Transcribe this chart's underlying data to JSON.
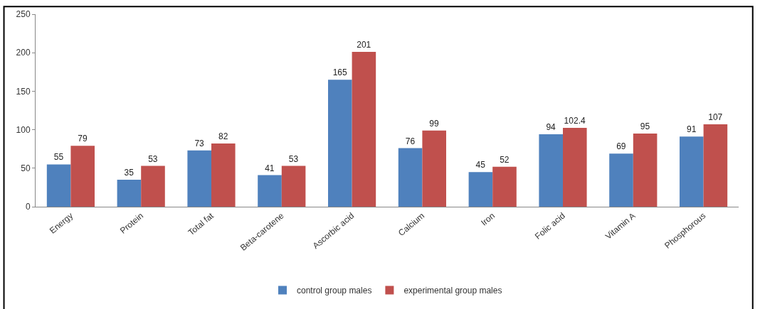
{
  "chart_data": {
    "type": "bar",
    "categories": [
      "Energy",
      "Protein",
      "Total fat",
      "Beta-carotene",
      "Ascorbic acid",
      "Calcium",
      "Iron",
      "Folic acid",
      "Vitamin A",
      "Phosphorous"
    ],
    "series": [
      {
        "name": "control group males",
        "color": "#4f81bd",
        "values": [
          55,
          35,
          73,
          41,
          165,
          76,
          45,
          94,
          69,
          91
        ]
      },
      {
        "name": "experimental group males",
        "color": "#c0504d",
        "values": [
          79,
          53,
          82,
          53,
          201,
          99,
          52,
          102.4,
          95,
          107
        ]
      }
    ],
    "ylim": [
      0,
      250
    ],
    "yticks": [
      0,
      50,
      100,
      150,
      200,
      250
    ],
    "data_labels": true,
    "legend": "bottom"
  }
}
